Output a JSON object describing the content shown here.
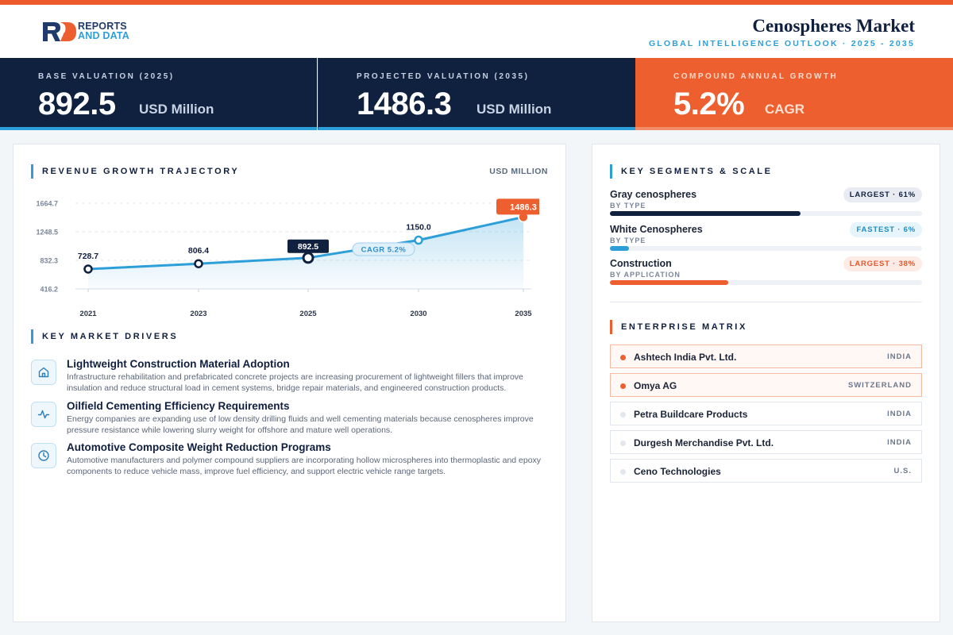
{
  "header": {
    "logo_line1": "REPORTS",
    "logo_line2": "AND DATA",
    "title": "Cenospheres Market",
    "subtitle": "GLOBAL INTELLIGENCE OUTLOOK  ·  2025 - 2035"
  },
  "colors": {
    "accent_orange": "#ee5f2f",
    "accent_blue": "#2d9fd8",
    "navy": "#10203f"
  },
  "kpis": [
    {
      "label": "BASE VALUATION (2025)",
      "value": "892.5",
      "unit": "USD Million"
    },
    {
      "label": "PROJECTED VALUATION (2035)",
      "value": "1486.3",
      "unit": "USD Million"
    },
    {
      "label": "COMPOUND ANNUAL GROWTH",
      "value": "5.2%",
      "unit": "CAGR"
    }
  ],
  "revenue": {
    "title": "REVENUE GROWTH TRAJECTORY",
    "unit_label": "USD MILLION"
  },
  "chart_data": {
    "type": "area",
    "title": "REVENUE GROWTH TRAJECTORY",
    "ylabel": "USD MILLION",
    "x": [
      "2021",
      "2023",
      "2025",
      "2030",
      "2035"
    ],
    "values": [
      728.7,
      806.4,
      892.5,
      1150.0,
      1486.3
    ],
    "value_labels": [
      "728.7",
      "806.4",
      "892.5",
      "1150.0",
      "1486.3"
    ],
    "y_ticks": [
      "416.2",
      "832.3",
      "1248.5",
      "1664.7"
    ],
    "ylim": [
      416.2,
      1664.7
    ],
    "annotation": "CAGR 5.2%",
    "highlight_base": "2025",
    "highlight_end": "2035",
    "grid": true
  },
  "drivers": {
    "title": "KEY MARKET DRIVERS",
    "items": [
      {
        "icon": "home-icon",
        "title": "Lightweight Construction Material Adoption",
        "desc": "Infrastructure rehabilitation and prefabricated concrete projects are increasing procurement of lightweight fillers that improve insulation and reduce structural load in cement systems, bridge repair materials, and engineered construction products."
      },
      {
        "icon": "pulse-icon",
        "title": "Oilfield Cementing Efficiency Requirements",
        "desc": "Energy companies are expanding use of low density drilling fluids and well cementing materials because cenospheres improve pressure resistance while lowering slurry weight for offshore and mature well operations."
      },
      {
        "icon": "clock-icon",
        "title": "Automotive Composite Weight Reduction Programs",
        "desc": "Automotive manufacturers and polymer compound suppliers are incorporating hollow microspheres into thermoplastic and epoxy components to reduce vehicle mass, improve fuel efficiency, and support electric vehicle range targets."
      }
    ]
  },
  "segments": {
    "title": "KEY SEGMENTS & SCALE",
    "items": [
      {
        "name": "Gray cenospheres",
        "by": "BY TYPE",
        "badge": "LARGEST · 61%",
        "share": 0.61,
        "color": "#10203f",
        "badge_bg": "#e8ecf2",
        "badge_fg": "#10203f"
      },
      {
        "name": "White Cenospheres",
        "by": "BY TYPE",
        "badge": "FASTEST · 6%",
        "share": 0.06,
        "color": "#2d9fd8",
        "badge_bg": "#e6f4fb",
        "badge_fg": "#1f8cc4"
      },
      {
        "name": "Construction",
        "by": "BY APPLICATION",
        "badge": "LARGEST · 38%",
        "share": 0.38,
        "color": "#ee5f2f",
        "badge_bg": "#fdece5",
        "badge_fg": "#e5562a"
      }
    ]
  },
  "enterprise": {
    "title": "ENTERPRISE MATRIX",
    "items": [
      {
        "name": "Ashtech India Pvt. Ltd.",
        "country": "INDIA",
        "highlight": true
      },
      {
        "name": "Omya AG",
        "country": "SWITZERLAND",
        "highlight": true
      },
      {
        "name": "Petra Buildcare Products",
        "country": "INDIA",
        "highlight": false
      },
      {
        "name": "Durgesh Merchandise Pvt. Ltd.",
        "country": "INDIA",
        "highlight": false
      },
      {
        "name": "Ceno Technologies",
        "country": "U.S.",
        "highlight": false
      }
    ]
  }
}
